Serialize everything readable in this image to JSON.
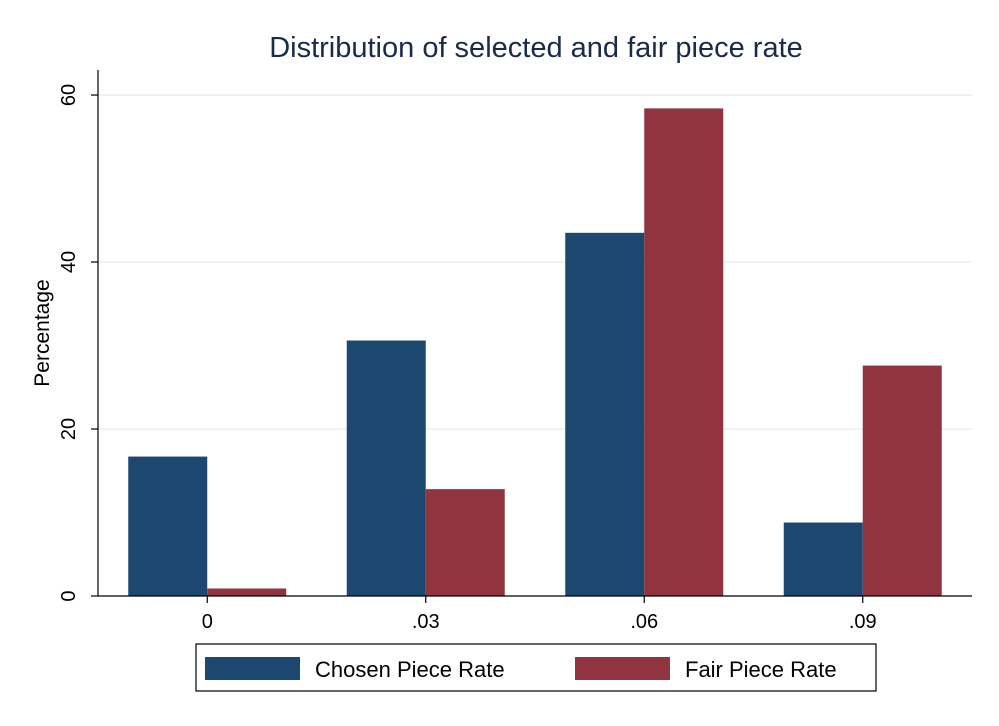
{
  "chart_data": {
    "type": "bar",
    "title": "Distribution of selected and fair piece rate",
    "xlabel": "",
    "ylabel": "Percentage",
    "categories": [
      "0",
      ".03",
      ".06",
      ".09"
    ],
    "series": [
      {
        "name": "Chosen Piece Rate",
        "values": [
          16.7,
          30.6,
          43.5,
          8.8
        ],
        "color": "#1c4870"
      },
      {
        "name": "Fair Piece Rate",
        "values": [
          0.9,
          12.8,
          58.4,
          27.6
        ],
        "color": "#903540"
      }
    ],
    "ylim": [
      0,
      63
    ],
    "yticks": [
      0,
      20,
      40,
      60
    ],
    "ytick_labels": [
      "0",
      "20",
      "40",
      "60"
    ],
    "grid": true,
    "legend_position": "bottom"
  }
}
